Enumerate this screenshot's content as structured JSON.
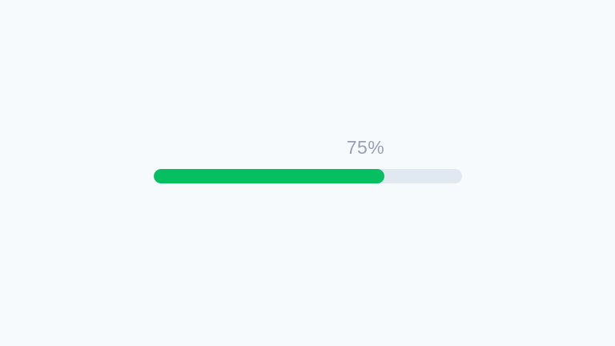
{
  "progress": {
    "label": "75%",
    "percent": 75,
    "colors": {
      "background": "#f7fafc",
      "track": "#e2e8ef",
      "fill": "#06bf61",
      "label_text": "#96a1b5"
    }
  }
}
